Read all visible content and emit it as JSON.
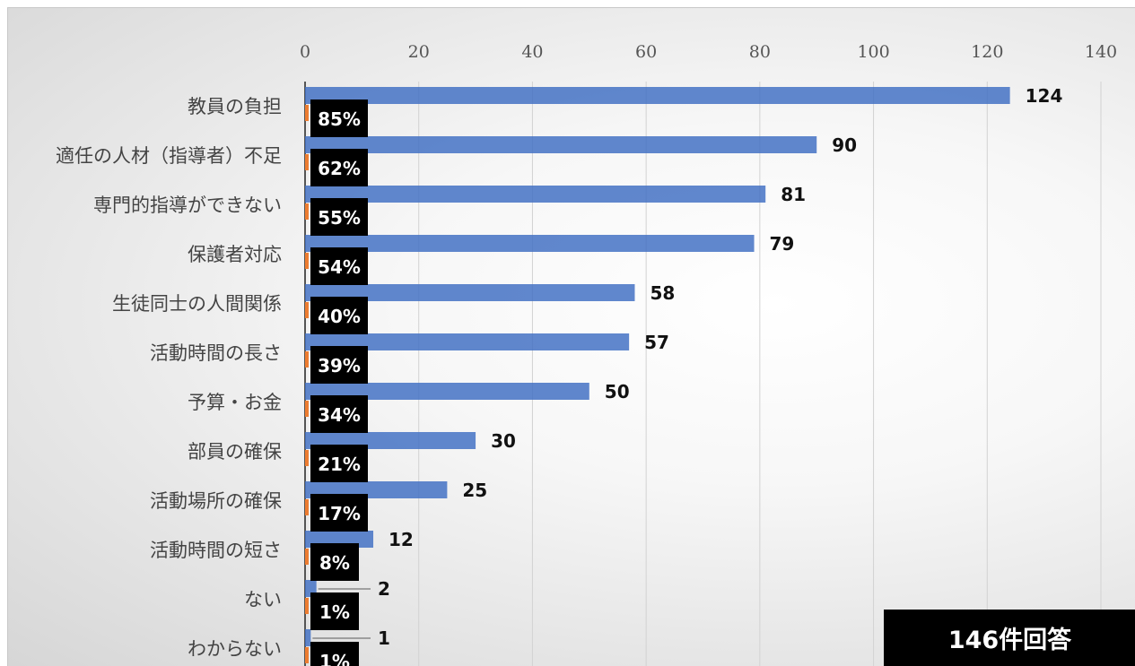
{
  "chart_data": {
    "type": "bar",
    "orientation": "horizontal",
    "categories": [
      "教員の負担",
      "適任の人材（指導者）不足",
      "専門的指導ができない",
      "保護者対応",
      "生徒同士の人間関係",
      "活動時間の長さ",
      "予算・お金",
      "部員の確保",
      "活動場所の確保",
      "活動時間の短さ",
      "ない",
      "わからない"
    ],
    "values": [
      124,
      90,
      81,
      79,
      58,
      57,
      50,
      30,
      25,
      12,
      2,
      1
    ],
    "percent_labels": [
      "85%",
      "62%",
      "55%",
      "54%",
      "40%",
      "39%",
      "34%",
      "21%",
      "17%",
      "8%",
      "1%",
      "1%"
    ],
    "xlim": [
      0,
      140
    ],
    "xticks": [
      0,
      20,
      40,
      60,
      80,
      100,
      120,
      140
    ],
    "axis_position": "top",
    "grid": true,
    "colors": {
      "bar": "#4472c4",
      "secondary_bar": "#ed7d31",
      "label_box": "#000000"
    }
  },
  "badge": {
    "text": "146件回答"
  }
}
